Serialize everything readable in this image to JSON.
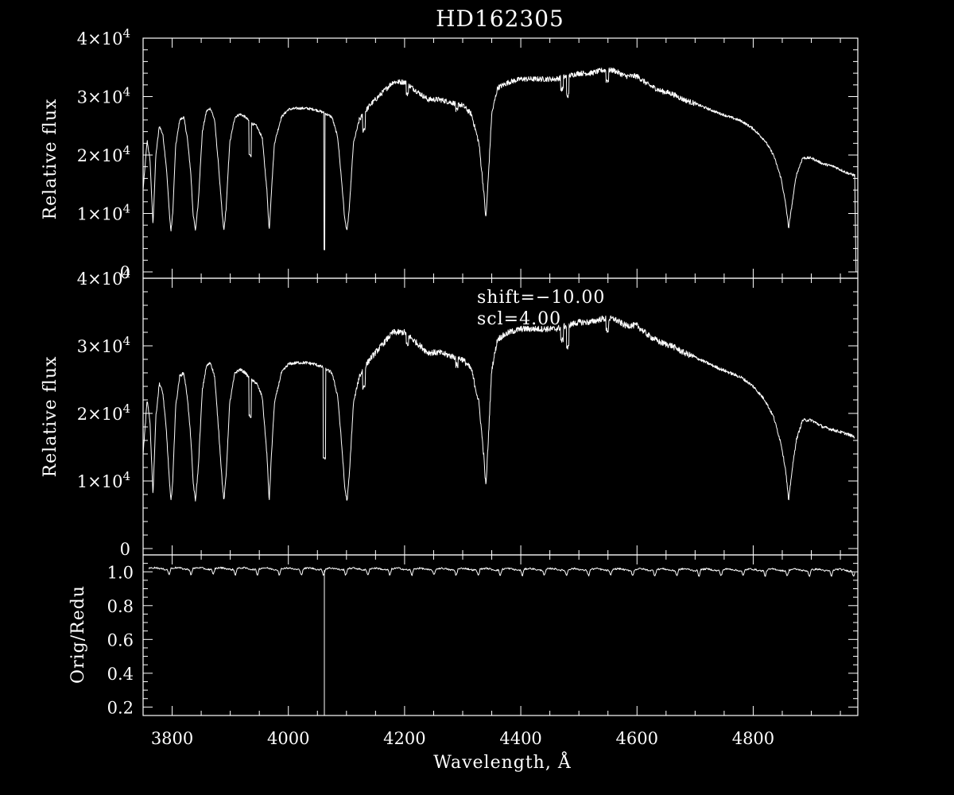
{
  "chart_data": [
    {
      "type": "line",
      "panel": "top",
      "title": "HD162305",
      "ylabel": "Relative flux",
      "xlabel": "",
      "xlim": [
        3750,
        4980
      ],
      "ylim": [
        0,
        40000
      ],
      "yticks": [
        {
          "value": 0,
          "mant": "0",
          "exp": ""
        },
        {
          "value": 10000,
          "mant": "1×10",
          "exp": "4"
        },
        {
          "value": 20000,
          "mant": "2×10",
          "exp": "4"
        },
        {
          "value": 30000,
          "mant": "3×10",
          "exp": "4"
        },
        {
          "value": 40000,
          "mant": "4×10",
          "exp": "4"
        }
      ],
      "series": [
        {
          "x": [
            3750,
            3757,
            3762,
            3767,
            3772,
            3778,
            3784,
            3790,
            3796,
            3798,
            3801,
            3806,
            3813,
            3820,
            3826,
            3832,
            3836,
            3840,
            3845,
            3852,
            3859,
            3866,
            3873,
            3880,
            3886,
            3889,
            3893,
            3899,
            3908,
            3917,
            3926,
            3935,
            3945,
            3955,
            3963,
            3967,
            3971,
            3976,
            3988,
            4000,
            4015,
            4030,
            4045,
            4060,
            4075,
            4085,
            4093,
            4097,
            4101,
            4105,
            4112,
            4122,
            4140,
            4160,
            4180,
            4200,
            4220,
            4240,
            4260,
            4280,
            4300,
            4315,
            4328,
            4336,
            4340,
            4344,
            4350,
            4360,
            4380,
            4400,
            4420,
            4440,
            4460,
            4480,
            4500,
            4520,
            4540,
            4560,
            4580,
            4600,
            4620,
            4640,
            4660,
            4680,
            4700,
            4720,
            4740,
            4760,
            4780,
            4800,
            4820,
            4835,
            4848,
            4856,
            4861,
            4866,
            4874,
            4885,
            4900,
            4920,
            4940,
            4960,
            4975
          ],
          "y": [
            14000,
            22500,
            19000,
            8000,
            20000,
            25000,
            23500,
            18000,
            9000,
            7000,
            10000,
            21500,
            26000,
            26500,
            23000,
            17000,
            10000,
            7000,
            12000,
            24000,
            27500,
            28000,
            26000,
            18000,
            10000,
            7000,
            11000,
            22000,
            26500,
            27000,
            26500,
            25500,
            25000,
            23000,
            14000,
            7000,
            14000,
            22000,
            26500,
            27800,
            28000,
            28000,
            27800,
            27300,
            26500,
            23000,
            14000,
            9000,
            7000,
            11000,
            22000,
            26000,
            28500,
            30500,
            32500,
            32500,
            31000,
            29500,
            29500,
            29000,
            28500,
            27000,
            22000,
            14000,
            9000,
            16000,
            27000,
            31500,
            32500,
            33000,
            33000,
            33000,
            33000,
            33500,
            34000,
            34000,
            34500,
            34500,
            33500,
            33500,
            32000,
            31000,
            30500,
            29500,
            28800,
            28000,
            27200,
            26500,
            25800,
            24500,
            22500,
            20000,
            16000,
            11500,
            7500,
            11000,
            16500,
            19500,
            19500,
            18500,
            18000,
            17000,
            16500
          ]
        }
      ]
    },
    {
      "type": "line",
      "panel": "middle",
      "ylabel": "Relative flux",
      "xlabel": "",
      "xlim": [
        3750,
        4980
      ],
      "ylim": [
        0,
        40000
      ],
      "annotations": [
        "shift=−10.00",
        "scl=4.00"
      ],
      "yticks": [
        {
          "value": 0,
          "mant": "0",
          "exp": ""
        },
        {
          "value": 10000,
          "mant": "1×10",
          "exp": "4"
        },
        {
          "value": 20000,
          "mant": "2×10",
          "exp": "4"
        },
        {
          "value": 30000,
          "mant": "3×10",
          "exp": "4"
        },
        {
          "value": 40000,
          "mant": "4×10",
          "exp": "4"
        }
      ],
      "series": [
        {
          "x": [
            3750,
            3757,
            3762,
            3767,
            3772,
            3778,
            3784,
            3790,
            3796,
            3798,
            3801,
            3806,
            3813,
            3820,
            3826,
            3832,
            3836,
            3840,
            3845,
            3852,
            3859,
            3866,
            3873,
            3880,
            3886,
            3889,
            3893,
            3899,
            3908,
            3917,
            3926,
            3935,
            3945,
            3955,
            3963,
            3967,
            3971,
            3976,
            3988,
            4000,
            4015,
            4030,
            4045,
            4060,
            4075,
            4085,
            4093,
            4097,
            4101,
            4105,
            4112,
            4122,
            4140,
            4160,
            4180,
            4200,
            4220,
            4240,
            4260,
            4280,
            4300,
            4315,
            4328,
            4336,
            4340,
            4344,
            4350,
            4360,
            4380,
            4400,
            4420,
            4440,
            4460,
            4480,
            4500,
            4520,
            4540,
            4560,
            4580,
            4600,
            4620,
            4640,
            4660,
            4680,
            4700,
            4720,
            4740,
            4760,
            4780,
            4800,
            4820,
            4835,
            4848,
            4856,
            4861,
            4866,
            4874,
            4885,
            4900,
            4920,
            4940,
            4960,
            4975
          ],
          "y": [
            14000,
            22000,
            18500,
            8000,
            19500,
            24500,
            23000,
            17500,
            9000,
            7000,
            10000,
            21000,
            25500,
            26000,
            22500,
            16500,
            10000,
            7000,
            12000,
            23500,
            27000,
            27500,
            25500,
            17500,
            10000,
            7000,
            11000,
            21500,
            26000,
            26500,
            26000,
            25000,
            24500,
            22500,
            14000,
            7000,
            14000,
            21500,
            26000,
            27300,
            27500,
            27500,
            27300,
            26800,
            26000,
            22500,
            14000,
            9000,
            7000,
            11000,
            21500,
            25500,
            28000,
            30000,
            32000,
            32000,
            30500,
            29000,
            29000,
            28500,
            28000,
            26500,
            21500,
            14000,
            9000,
            16000,
            26500,
            31000,
            32000,
            32500,
            32500,
            32500,
            32500,
            33000,
            33500,
            33500,
            34000,
            34000,
            33000,
            33000,
            31500,
            30500,
            30000,
            29000,
            28300,
            27500,
            26700,
            26000,
            25300,
            24000,
            22000,
            19500,
            15500,
            11500,
            7000,
            11000,
            16000,
            19000,
            19000,
            18000,
            17500,
            17000,
            16500
          ]
        }
      ]
    },
    {
      "type": "line",
      "panel": "bottom",
      "ylabel": "Orig/Redu",
      "xlabel": "Wavelength, Å",
      "xlim": [
        3750,
        4980
      ],
      "ylim": [
        0.15,
        1.1
      ],
      "xticks": [
        3800,
        4000,
        4200,
        4400,
        4600,
        4800
      ],
      "yticks": [
        "0.2",
        "0.4",
        "0.6",
        "0.8",
        "1.0"
      ],
      "series": [
        {
          "x": [
            3750,
            4980
          ],
          "y": [
            1.02,
            1.01
          ]
        }
      ]
    }
  ]
}
